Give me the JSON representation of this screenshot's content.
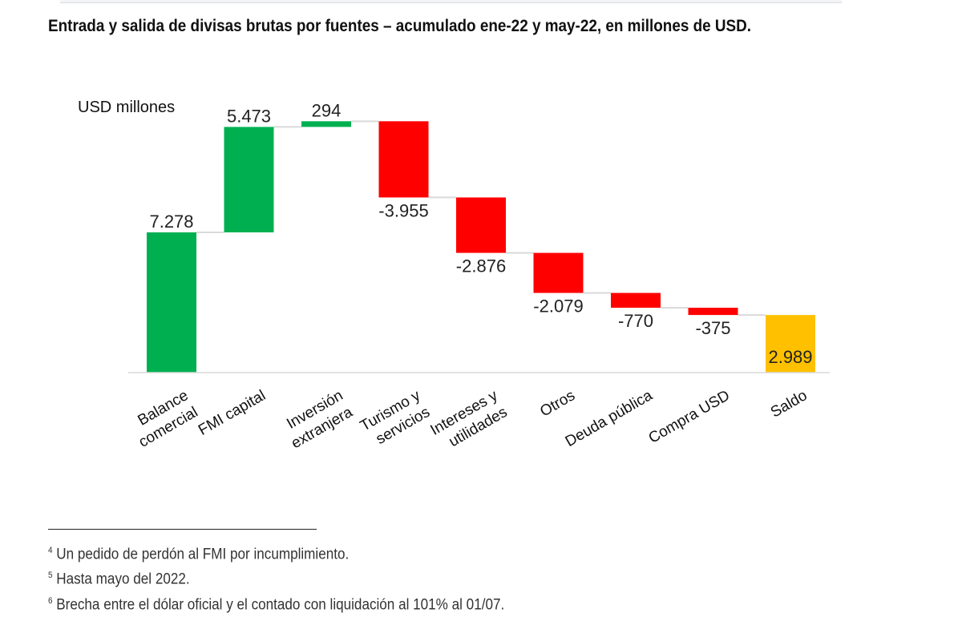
{
  "title": "Entrada y salida de divisas brutas por fuentes – acumulado ene-22 y may-22, en millones de USD.",
  "chart_data": {
    "type": "waterfall",
    "ylabel": "USD millones",
    "categories": [
      [
        "Balance",
        "comercial"
      ],
      [
        "FMI capital"
      ],
      [
        "Inversión",
        "extranjera"
      ],
      [
        "Turismo y",
        "servicios"
      ],
      [
        "Intereses y",
        "utilidades"
      ],
      [
        "Otros"
      ],
      [
        "Deuda pública"
      ],
      [
        "Compra USD"
      ],
      [
        "Saldo"
      ]
    ],
    "values": [
      7278,
      5473,
      294,
      -3955,
      -2876,
      -2079,
      -770,
      -375,
      2989
    ],
    "labels": [
      "7.278",
      "5.473",
      "294",
      "-3.955",
      "-2.876",
      "-2.079",
      "-770",
      "-375",
      "2.989"
    ],
    "total_index": 8,
    "colors": {
      "increase": "#00b050",
      "decrease": "#ff0000",
      "total": "#ffc000",
      "connector": "#d9d9d9"
    },
    "grid": false
  },
  "footnotes": [
    {
      "n": "4",
      "text": "Un pedido de perdón al FMI por incumplimiento."
    },
    {
      "n": "5",
      "text": "Hasta mayo del 2022."
    },
    {
      "n": "6",
      "text": "Brecha entre el dólar oficial y el contado con liquidación al 101% al 01/07."
    }
  ]
}
